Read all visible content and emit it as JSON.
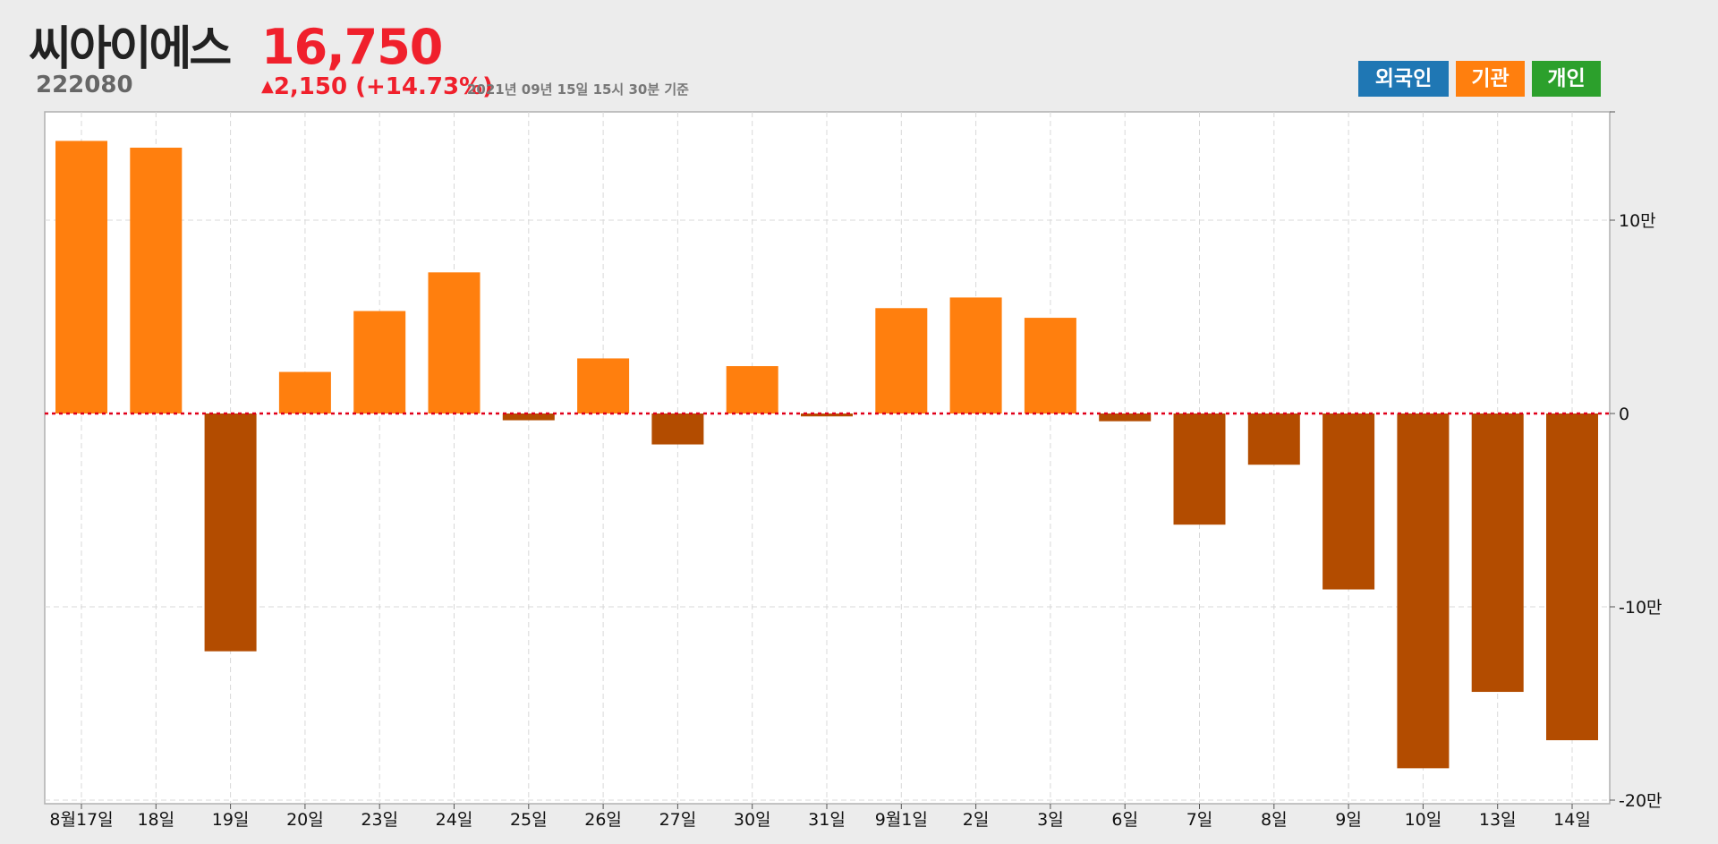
{
  "stock": {
    "name": "씨아이에스",
    "code": "222080",
    "price": "16,750",
    "change_arrow": "▲",
    "change": "2,150 (+14.73%)",
    "as_of": "2021년 09년 15일 15시 30분 기준"
  },
  "legend": [
    {
      "label": "외국인",
      "color": "#1f77b4"
    },
    {
      "label": "기관",
      "color": "#ff7f0e"
    },
    {
      "label": "개인",
      "color": "#2ca02c"
    }
  ],
  "colors": {
    "positive": "#ff7f0e",
    "negative": "#b34c00",
    "zero_line": "#e0001a",
    "grid": "#d8d8d8"
  },
  "chart_data": {
    "type": "bar",
    "series": [
      {
        "name": "기관",
        "values": [
          141000,
          137500,
          -123000,
          21500,
          53000,
          73000,
          -3500,
          28500,
          -16000,
          24500,
          -1500,
          54500,
          60000,
          49500,
          -4000,
          -57500,
          -26500,
          -91000,
          -183500,
          -144000,
          -169000
        ]
      }
    ],
    "categories": [
      "8월17일",
      "18일",
      "19일",
      "20일",
      "23일",
      "24일",
      "25일",
      "26일",
      "27일",
      "30일",
      "31일",
      "9월1일",
      "2일",
      "3일",
      "6일",
      "7일",
      "8일",
      "9일",
      "10일",
      "13일",
      "14일"
    ],
    "y_ticks": [
      {
        "value": 100000,
        "label": "10만"
      },
      {
        "value": 0,
        "label": "0"
      },
      {
        "value": -100000,
        "label": "-10만"
      },
      {
        "value": -200000,
        "label": "-20만"
      }
    ],
    "ylim": [
      -200000,
      155000
    ],
    "grid": true
  }
}
